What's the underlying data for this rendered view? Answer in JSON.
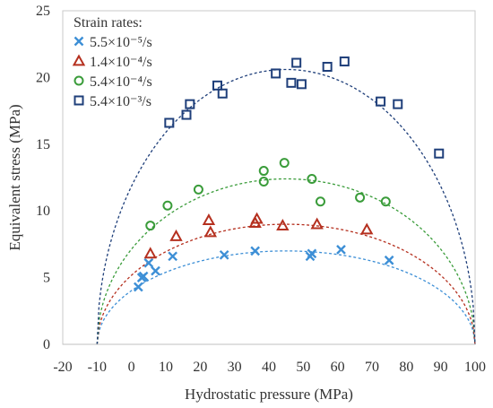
{
  "chart_data": {
    "type": "scatter",
    "title": "",
    "xlabel": "Hydrostatic pressure (MPa)",
    "ylabel": "Equivalent stress (MPa)",
    "xlim": [
      -20,
      100
    ],
    "ylim": [
      0,
      25
    ],
    "xticks": [
      -20,
      -10,
      0,
      10,
      20,
      30,
      40,
      50,
      60,
      70,
      80,
      90,
      100
    ],
    "yticks": [
      0,
      5,
      10,
      15,
      20,
      25
    ],
    "grid": false,
    "legend": {
      "title": "Strain rates:",
      "placement": "top-left"
    },
    "series": [
      {
        "name": "5.5×10⁻⁵/s",
        "marker": "x",
        "color": "#3d8fd6",
        "curve": {
          "x0": -10,
          "x1": 100,
          "peak": 7.0
        },
        "points": [
          [
            2,
            4.3
          ],
          [
            3,
            5.0
          ],
          [
            3.5,
            5.1
          ],
          [
            5,
            6.1
          ],
          [
            7,
            5.5
          ],
          [
            12,
            6.6
          ],
          [
            27,
            6.7
          ],
          [
            36,
            7.0
          ],
          [
            52,
            6.6
          ],
          [
            52.5,
            6.8
          ],
          [
            61,
            7.1
          ],
          [
            75,
            6.3
          ]
        ]
      },
      {
        "name": "1.4×10⁻⁴/s",
        "marker": "triangle",
        "color": "#b5301f",
        "curve": {
          "x0": -10,
          "x1": 100,
          "peak": 9.0
        },
        "points": [
          [
            5.5,
            6.8
          ],
          [
            13,
            8.1
          ],
          [
            22.5,
            9.3
          ],
          [
            23,
            8.4
          ],
          [
            36,
            9.1
          ],
          [
            36.5,
            9.4
          ],
          [
            44,
            8.9
          ],
          [
            54,
            9.0
          ],
          [
            68.5,
            8.6
          ]
        ]
      },
      {
        "name": "5.4×10⁻⁴/s",
        "marker": "circle",
        "color": "#3a9c3a",
        "curve": {
          "x0": -10,
          "x1": 100,
          "peak": 12.4
        },
        "points": [
          [
            5.5,
            8.9
          ],
          [
            10.5,
            10.4
          ],
          [
            19.5,
            11.6
          ],
          [
            38.5,
            13.0
          ],
          [
            38.5,
            12.2
          ],
          [
            44.5,
            13.6
          ],
          [
            52.5,
            12.4
          ],
          [
            55,
            10.7
          ],
          [
            66.5,
            11.0
          ],
          [
            74,
            10.7
          ]
        ]
      },
      {
        "name": "5.4×10⁻³/s",
        "marker": "square",
        "color": "#1f3f7a",
        "curve": {
          "x0": -10,
          "x1": 100,
          "peak": 20.6
        },
        "points": [
          [
            11,
            16.6
          ],
          [
            16,
            17.2
          ],
          [
            17,
            18.0
          ],
          [
            25,
            19.4
          ],
          [
            26.5,
            18.8
          ],
          [
            42,
            20.3
          ],
          [
            46.5,
            19.6
          ],
          [
            48,
            21.1
          ],
          [
            49.5,
            19.5
          ],
          [
            57,
            20.8
          ],
          [
            62,
            21.2
          ],
          [
            72.5,
            18.2
          ],
          [
            77.5,
            18.0
          ],
          [
            89.5,
            14.3
          ]
        ]
      }
    ]
  }
}
